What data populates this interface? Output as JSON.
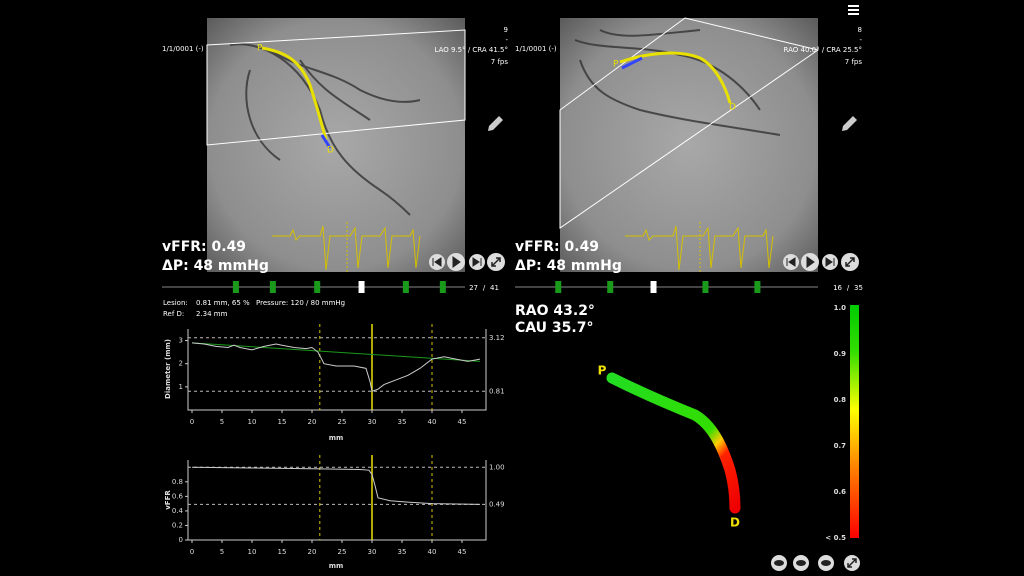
{
  "left_view": {
    "date": "1/1/0001 (-)",
    "frame_top": "9",
    "dash": "-",
    "angle": "LAO 9.5° / CRA 41.5°",
    "fps": "7 fps",
    "vffr": "vFFR: 0.49",
    "dp": "ΔP: 48 mmHg",
    "proximal": "P",
    "distal": "D",
    "frame": 27,
    "frame_sep": "/",
    "frame_total": 41,
    "cycle_frames": [
      10,
      15,
      21,
      33,
      38
    ]
  },
  "right_view": {
    "date": "1/1/0001 (-)",
    "frame_top": "8",
    "dash": "-",
    "angle": "RAO 40.0° / CRA 25.5°",
    "fps": "7 fps",
    "vffr": "vFFR: 0.49",
    "dp": "ΔP: 48 mmHg",
    "proximal": "P",
    "distal": "D",
    "frame": 16,
    "frame_sep": "/",
    "frame_total": 35,
    "cycle_frames": [
      5,
      11,
      22,
      28
    ]
  },
  "lesion_info": {
    "lesion_label": "Lesion:",
    "lesion": "0.81 mm, 65 %",
    "pressure": "Pressure: 120 / 80 mmHg",
    "ref_label": "Ref D:",
    "ref": "2.34 mm"
  },
  "diameter_chart": {
    "type": "line",
    "ylabel": "Diameter (mm)",
    "xlabel": "mm",
    "color": "#cccccc",
    "x": [
      0,
      2,
      4,
      6,
      7,
      8,
      10,
      12,
      14,
      15,
      17,
      19,
      20,
      21,
      22,
      24,
      27,
      29,
      29.7,
      30,
      31,
      32,
      34,
      36,
      38,
      40,
      42,
      44,
      46,
      48
    ],
    "values": [
      2.9,
      2.85,
      2.75,
      2.7,
      2.8,
      2.7,
      2.6,
      2.75,
      2.85,
      2.8,
      2.7,
      2.65,
      2.7,
      2.5,
      2.0,
      1.9,
      1.9,
      1.8,
      1.2,
      0.81,
      0.9,
      1.1,
      1.3,
      1.5,
      1.8,
      2.2,
      2.3,
      2.2,
      2.1,
      2.2
    ],
    "reference": {
      "x": [
        0,
        48
      ],
      "values": [
        2.9,
        2.1
      ],
      "color": "#1a9a1a"
    },
    "hlines": [
      3.12,
      0.81
    ],
    "markers_x": [
      21.3,
      30,
      40
    ],
    "xlim": [
      0,
      49
    ],
    "ylim": [
      0,
      3.5
    ],
    "xticks": [
      0,
      5,
      10,
      15,
      20,
      25,
      30,
      35,
      40,
      45
    ],
    "yticks": [
      1,
      2,
      3
    ]
  },
  "vffr_chart": {
    "type": "line",
    "ylabel": "vFFR",
    "xlabel": "mm",
    "color": "#cccccc",
    "x": [
      0,
      10,
      20,
      28,
      29.5,
      30,
      30.5,
      31,
      33,
      36,
      40,
      44,
      48
    ],
    "values": [
      1.0,
      0.99,
      0.98,
      0.97,
      0.96,
      0.9,
      0.75,
      0.58,
      0.54,
      0.52,
      0.5,
      0.495,
      0.49
    ],
    "hlines": [
      {
        "value": 1,
        "label": "1.00"
      },
      0.49
    ],
    "markers_x": [
      21.3,
      30,
      40
    ],
    "xlim": [
      0,
      49
    ],
    "ylim": [
      0,
      1.1
    ],
    "xticks": [
      0,
      5,
      10,
      15,
      20,
      25,
      30,
      35,
      40,
      45
    ],
    "yticks": [
      0,
      0.2,
      0.4,
      0.6,
      0.8
    ]
  },
  "view_3d": {
    "angle1": "RAO 43.2°",
    "angle2": "CAU 35.7°",
    "proximal": "P",
    "distal": "D"
  },
  "colorbar": {
    "lim": [
      0.5,
      1
    ],
    "ticks": [
      {
        "value": 1,
        "label": "1.0"
      },
      0.9,
      0.8,
      0.7,
      0.6,
      {
        "value": 0.5,
        "label": "< 0.5"
      }
    ]
  }
}
